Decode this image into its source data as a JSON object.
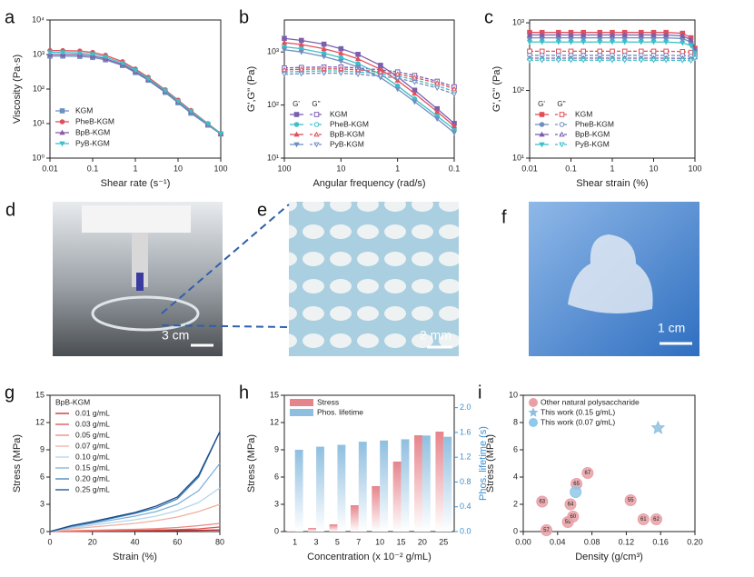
{
  "chart_data": [
    {
      "panel": "a",
      "type": "line",
      "xscale": "log",
      "yscale": "log",
      "xlabel": "Shear rate (s⁻¹)",
      "ylabel": "Viscosity (Pa·s)",
      "xlim": [
        0.01,
        100
      ],
      "ylim": [
        1,
        10000
      ],
      "xticks": [
        0.01,
        0.1,
        1,
        10,
        100
      ],
      "yticks": [
        {
          "value": 1,
          "label": "10⁰"
        },
        {
          "value": 10,
          "label": "10¹"
        },
        {
          "value": 100,
          "label": "10²"
        },
        {
          "value": 1000,
          "label": "10³"
        },
        {
          "value": 10000,
          "label": "10⁴"
        }
      ],
      "legend": "lower left",
      "x": [
        0.01,
        0.02,
        0.05,
        0.1,
        0.2,
        0.5,
        1,
        2,
        5,
        10,
        20,
        50,
        100
      ],
      "series": [
        {
          "name": "KGM",
          "color": "#6f8fc0",
          "marker": "square",
          "values": [
            900,
            900,
            880,
            820,
            700,
            480,
            300,
            180,
            80,
            40,
            20,
            9,
            5
          ]
        },
        {
          "name": "PheB-KGM",
          "color": "#e0505a",
          "marker": "circle",
          "values": [
            1300,
            1300,
            1260,
            1150,
            950,
            620,
            380,
            220,
            95,
            48,
            24,
            10,
            5.2
          ]
        },
        {
          "name": "BpB-KGM",
          "color": "#8a5aa8",
          "marker": "triangle",
          "values": [
            1000,
            1000,
            980,
            900,
            760,
            510,
            320,
            190,
            85,
            43,
            22,
            9.5,
            5
          ]
        },
        {
          "name": "PyB-KGM",
          "color": "#3cc0c8",
          "marker": "tridown",
          "values": [
            1150,
            1150,
            1100,
            1020,
            850,
            560,
            350,
            200,
            90,
            45,
            23,
            9.8,
            5.1
          ]
        }
      ]
    },
    {
      "panel": "b",
      "type": "line",
      "xscale": "log",
      "yscale": "log",
      "xlabel": "Angular frequency (rad/s)",
      "ylabel": "G',G'' (Pa)",
      "xlim": [
        100,
        0.1
      ],
      "ylim": [
        10,
        4000
      ],
      "xticks": [
        100,
        10,
        1,
        0.1
      ],
      "yticks": [
        {
          "value": 10,
          "label": "10¹"
        },
        {
          "value": 100,
          "label": "10²"
        },
        {
          "value": 1000,
          "label": "10³"
        }
      ],
      "legend": "lower left",
      "legend_headers": [
        "G'",
        "G''"
      ],
      "x": [
        100,
        50,
        20,
        10,
        5,
        2,
        1,
        0.5,
        0.2,
        0.1
      ],
      "series": [
        {
          "name": "KGM",
          "color": "#7a5fb0",
          "marker": "square",
          "values": [
            1800,
            1650,
            1400,
            1150,
            900,
            560,
            340,
            190,
            85,
            45
          ],
          "loss_values": [
            500,
            510,
            520,
            520,
            500,
            460,
            420,
            360,
            280,
            220
          ]
        },
        {
          "name": "PheB-KGM",
          "color": "#3cc0c8",
          "marker": "circle",
          "values": [
            1250,
            1150,
            950,
            780,
            600,
            380,
            230,
            130,
            62,
            35
          ],
          "loss_values": [
            420,
            430,
            440,
            440,
            420,
            390,
            350,
            300,
            230,
            180
          ]
        },
        {
          "name": "BpB-KGM",
          "color": "#e0505a",
          "marker": "triangle",
          "values": [
            1500,
            1380,
            1150,
            950,
            740,
            470,
            290,
            165,
            75,
            40
          ],
          "loss_values": [
            460,
            470,
            480,
            480,
            460,
            420,
            380,
            330,
            260,
            200
          ]
        },
        {
          "name": "PyB-KGM",
          "color": "#6f8fc0",
          "marker": "tridown",
          "values": [
            1100,
            1000,
            820,
            670,
            520,
            330,
            200,
            115,
            55,
            30
          ],
          "loss_values": [
            380,
            390,
            400,
            400,
            380,
            350,
            320,
            270,
            210,
            160
          ]
        }
      ]
    },
    {
      "panel": "c",
      "type": "line",
      "xscale": "log",
      "yscale": "log",
      "xlabel": "Shear strain (%)",
      "ylabel": "G',G'' (Pa)",
      "xlim": [
        0.01,
        100
      ],
      "ylim": [
        10,
        1100
      ],
      "xticks": [
        0.01,
        0.1,
        1,
        10,
        100
      ],
      "yticks": [
        {
          "value": 10,
          "label": "10¹"
        },
        {
          "value": 100,
          "label": "10²"
        },
        {
          "value": 1000,
          "label": "10³"
        }
      ],
      "legend": "lower left",
      "legend_headers": [
        "G'",
        "G''"
      ],
      "x": [
        0.01,
        0.02,
        0.05,
        0.1,
        0.2,
        0.5,
        1,
        2,
        5,
        10,
        20,
        50,
        80,
        100
      ],
      "series": [
        {
          "name": "KGM",
          "color": "#e0505a",
          "marker": "square",
          "values": [
            720,
            720,
            720,
            720,
            720,
            720,
            720,
            720,
            720,
            720,
            720,
            700,
            600,
            420
          ],
          "loss_values": [
            380,
            380,
            380,
            380,
            380,
            380,
            380,
            380,
            380,
            380,
            380,
            375,
            365,
            340
          ]
        },
        {
          "name": "PheB-KGM",
          "color": "#6f8fc0",
          "marker": "circle",
          "values": [
            600,
            600,
            600,
            600,
            600,
            600,
            600,
            600,
            600,
            600,
            600,
            585,
            520,
            390
          ],
          "loss_values": [
            330,
            330,
            330,
            330,
            330,
            330,
            330,
            330,
            330,
            330,
            330,
            328,
            320,
            320
          ]
        },
        {
          "name": "BpB-KGM",
          "color": "#7a5fb0",
          "marker": "triangle",
          "values": [
            660,
            660,
            660,
            660,
            660,
            660,
            660,
            660,
            660,
            660,
            660,
            640,
            560,
            400
          ],
          "loss_values": [
            300,
            300,
            300,
            300,
            300,
            300,
            300,
            300,
            300,
            300,
            300,
            298,
            295,
            310
          ]
        },
        {
          "name": "PyB-KGM",
          "color": "#3cc0c8",
          "marker": "tridown",
          "values": [
            520,
            520,
            520,
            520,
            520,
            520,
            520,
            520,
            520,
            520,
            520,
            505,
            460,
            360
          ],
          "loss_values": [
            280,
            280,
            280,
            280,
            280,
            280,
            280,
            280,
            280,
            280,
            280,
            278,
            275,
            300
          ]
        }
      ]
    },
    {
      "panel": "g",
      "type": "line",
      "xlabel": "Strain (%)",
      "ylabel": "Stress (MPa)",
      "xlim": [
        0,
        80
      ],
      "ylim": [
        0,
        15
      ],
      "xticks": [
        0,
        20,
        40,
        60,
        80
      ],
      "yticks": [
        0,
        3,
        6,
        9,
        12,
        15
      ],
      "legend": "upper left",
      "legend_title": "BpB-KGM",
      "x": [
        0,
        10,
        20,
        30,
        40,
        50,
        60,
        70,
        80
      ],
      "series": [
        {
          "name": "0.01 g/mL",
          "color": "#c0282e",
          "values": [
            0,
            0.02,
            0.04,
            0.06,
            0.08,
            0.1,
            0.12,
            0.14,
            0.18
          ]
        },
        {
          "name": "0.03 g/mL",
          "color": "#d9534f",
          "values": [
            0,
            0.05,
            0.08,
            0.1,
            0.13,
            0.17,
            0.22,
            0.3,
            0.5
          ]
        },
        {
          "name": "0.05 g/mL",
          "color": "#e88a7e",
          "values": [
            0,
            0.1,
            0.15,
            0.2,
            0.25,
            0.32,
            0.45,
            0.65,
            0.9
          ]
        },
        {
          "name": "0.07 g/mL",
          "color": "#f0b0a0",
          "values": [
            0,
            0.3,
            0.5,
            0.7,
            0.9,
            1.2,
            1.6,
            2.2,
            3.0
          ]
        },
        {
          "name": "0.10 g/mL",
          "color": "#b8d4ea",
          "values": [
            0,
            0.4,
            0.7,
            1.0,
            1.3,
            1.7,
            2.3,
            3.2,
            4.8
          ]
        },
        {
          "name": "0.15 g/mL",
          "color": "#7fb2d9",
          "values": [
            0,
            0.5,
            0.9,
            1.3,
            1.7,
            2.2,
            3.0,
            4.5,
            7.5
          ]
        },
        {
          "name": "0.20 g/mL",
          "color": "#3f7fb8",
          "values": [
            0,
            0.6,
            1.0,
            1.5,
            2.0,
            2.6,
            3.6,
            6.0,
            11
          ]
        },
        {
          "name": "0.25 g/mL",
          "color": "#1a4a85",
          "values": [
            0,
            0.65,
            1.1,
            1.6,
            2.1,
            2.8,
            3.8,
            6.2,
            11
          ]
        }
      ]
    },
    {
      "panel": "h",
      "type": "bar",
      "xlabel": "Concentration (x 10⁻² g/mL)",
      "ylabel": "Stress (MPa)",
      "y2label": "Phos. lifetime (s)",
      "y2color": "#3d8fd0",
      "categories": [
        "1",
        "3",
        "5",
        "7",
        "10",
        "15",
        "20",
        "25"
      ],
      "ylim": [
        0,
        15
      ],
      "yticks": [
        0,
        3,
        6,
        9,
        12,
        15
      ],
      "y2lim": [
        0,
        2.2
      ],
      "y2ticks": [
        {
          "value": 0,
          "label": "0.0"
        },
        0.4,
        0.8,
        1.2,
        1.6,
        {
          "value": 2,
          "label": "2.0"
        }
      ],
      "legend": "upper left",
      "series": [
        {
          "name": "Stress",
          "color": "#e6848c",
          "values": [
            0.05,
            0.4,
            0.8,
            2.9,
            5.0,
            7.7,
            10.6,
            11.0
          ]
        },
        {
          "name": "Phos. lifetime",
          "color": "#8fbfe0",
          "axis": "y2",
          "values": [
            1.32,
            1.37,
            1.4,
            1.45,
            1.47,
            1.49,
            1.55,
            1.53
          ]
        }
      ]
    },
    {
      "panel": "i",
      "type": "scatter",
      "xlabel": "Density (g/cm³)",
      "ylabel": "Stress (MPa)",
      "xlim": [
        0,
        0.2
      ],
      "ylim": [
        0,
        10
      ],
      "xticks": [
        {
          "value": 0,
          "label": "0.00"
        },
        0.04,
        0.08,
        0.12,
        0.16,
        {
          "value": 0.2,
          "label": "0.20"
        }
      ],
      "yticks": [
        0,
        2,
        4,
        6,
        8,
        10
      ],
      "legend": "upper left",
      "series": [
        {
          "name": "Other natural polysaccharide",
          "color": "#e8a0a6",
          "marker": "circle",
          "x": [
            0.022,
            0.027,
            0.055,
            0.052,
            0.058,
            0.062,
            0.075,
            0.125,
            0.14,
            0.155
          ],
          "values": [
            2.2,
            0.1,
            2.0,
            0.7,
            1.1,
            3.5,
            4.3,
            2.3,
            0.9,
            0.9
          ],
          "point_labels": [
            "63",
            "57",
            "64",
            "59",
            "60",
            "65",
            "67",
            "55",
            "61",
            "62"
          ]
        },
        {
          "name": "This work (0.15 g/mL)",
          "color": "#8fbfe0",
          "marker": "star",
          "x": [
            0.157
          ],
          "values": [
            7.6
          ]
        },
        {
          "name": "This work (0.07 g/mL)",
          "color": "#8fc8e8",
          "marker": "circle",
          "x": [
            0.061
          ],
          "values": [
            2.9
          ]
        }
      ]
    }
  ],
  "images": [
    {
      "panel": "d",
      "scale_bar": "3 cm"
    },
    {
      "panel": "e",
      "scale_bar": "2 mm"
    },
    {
      "panel": "f",
      "scale_bar": "1 cm"
    }
  ]
}
